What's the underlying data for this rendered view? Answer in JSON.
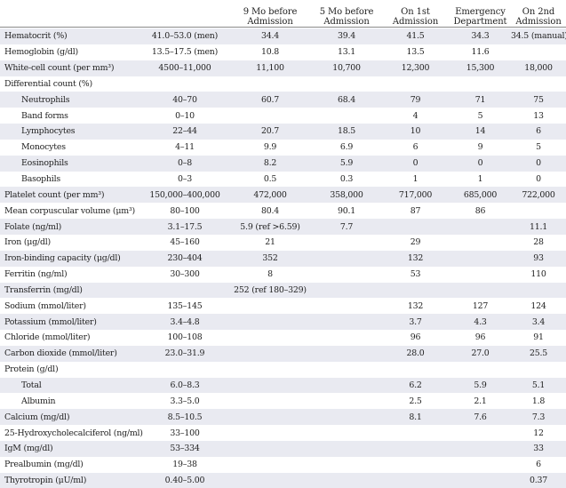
{
  "headers": [
    "",
    "",
    "9 Mo before\nAdmission",
    "5 Mo before\nAdmission",
    "On 1st\nAdmission",
    "Emergency\nDepartment",
    "On 2nd\nAdmission"
  ],
  "rows": [
    {
      "name": "Hematocrit (%)",
      "indent": false,
      "cells": [
        "41.0–53.0 (men)",
        "34.4",
        "39.4",
        "41.5",
        "34.3",
        "34.5 (manual)"
      ]
    },
    {
      "name": "Hemoglobin (g/dl)",
      "indent": false,
      "cells": [
        "13.5–17.5 (men)",
        "10.8",
        "13.1",
        "13.5",
        "11.6",
        ""
      ]
    },
    {
      "name": "White-cell count (per mm³)",
      "indent": false,
      "cells": [
        "4500–11,000",
        "11,100",
        "10,700",
        "12,300",
        "15,300",
        "18,000"
      ]
    },
    {
      "name": "Differential count (%)",
      "indent": false,
      "cells": [
        "",
        "",
        "",
        "",
        "",
        ""
      ]
    },
    {
      "name": "Neutrophils",
      "indent": true,
      "cells": [
        "40–70",
        "60.7",
        "68.4",
        "79",
        "71",
        "75"
      ]
    },
    {
      "name": "Band forms",
      "indent": true,
      "cells": [
        "0–10",
        "",
        "",
        "4",
        "5",
        "13"
      ]
    },
    {
      "name": "Lymphocytes",
      "indent": true,
      "cells": [
        "22–44",
        "20.7",
        "18.5",
        "10",
        "14",
        "6"
      ]
    },
    {
      "name": "Monocytes",
      "indent": true,
      "cells": [
        "4–11",
        "9.9",
        "6.9",
        "6",
        "9",
        "5"
      ]
    },
    {
      "name": "Eosinophils",
      "indent": true,
      "cells": [
        "0–8",
        "8.2",
        "5.9",
        "0",
        "0",
        "0"
      ]
    },
    {
      "name": "Basophils",
      "indent": true,
      "cells": [
        "0–3",
        "0.5",
        "0.3",
        "1",
        "1",
        "0"
      ]
    },
    {
      "name": "Platelet count (per mm³)",
      "indent": false,
      "cells": [
        "150,000–400,000",
        "472,000",
        "358,000",
        "717,000",
        "685,000",
        "722,000"
      ]
    },
    {
      "name": "Mean corpuscular volume (μm³)",
      "indent": false,
      "cells": [
        "80–100",
        "80.4",
        "90.1",
        "87",
        "86",
        ""
      ]
    },
    {
      "name": "Folate (ng/ml)",
      "indent": false,
      "cells": [
        "3.1–17.5",
        "5.9 (ref >6.59)",
        "7.7",
        "",
        "",
        "11.1"
      ]
    },
    {
      "name": "Iron (μg/dl)",
      "indent": false,
      "cells": [
        "45–160",
        "21",
        "",
        "29",
        "",
        "28"
      ]
    },
    {
      "name": "Iron-binding capacity (μg/dl)",
      "indent": false,
      "cells": [
        "230–404",
        "352",
        "",
        "132",
        "",
        "93"
      ]
    },
    {
      "name": "Ferritin (ng/ml)",
      "indent": false,
      "cells": [
        "30–300",
        "8",
        "",
        "53",
        "",
        "110"
      ]
    },
    {
      "name": "Transferrin (mg/dl)",
      "indent": false,
      "cells": [
        "",
        "252 (ref 180–329)",
        "",
        "",
        "",
        ""
      ]
    },
    {
      "name": "Sodium (mmol/liter)",
      "indent": false,
      "cells": [
        "135–145",
        "",
        "",
        "132",
        "127",
        "124"
      ]
    },
    {
      "name": "Potassium (mmol/liter)",
      "indent": false,
      "cells": [
        "3.4–4.8",
        "",
        "",
        "3.7",
        "4.3",
        "3.4"
      ]
    },
    {
      "name": "Chloride (mmol/liter)",
      "indent": false,
      "cells": [
        "100–108",
        "",
        "",
        "96",
        "96",
        "91"
      ]
    },
    {
      "name": "Carbon dioxide (mmol/liter)",
      "indent": false,
      "cells": [
        "23.0–31.9",
        "",
        "",
        "28.0",
        "27.0",
        "25.5"
      ]
    },
    {
      "name": "Protein (g/dl)",
      "indent": false,
      "cells": [
        "",
        "",
        "",
        "",
        "",
        ""
      ]
    },
    {
      "name": "Total",
      "indent": true,
      "cells": [
        "6.0–8.3",
        "",
        "",
        "6.2",
        "5.9",
        "5.1"
      ]
    },
    {
      "name": "Albumin",
      "indent": true,
      "cells": [
        "3.3–5.0",
        "",
        "",
        "2.5",
        "2.1",
        "1.8"
      ]
    },
    {
      "name": "Calcium (mg/dl)",
      "indent": false,
      "cells": [
        "8.5–10.5",
        "",
        "",
        "8.1",
        "7.6",
        "7.3"
      ]
    },
    {
      "name": "25-Hydroxycholecalciferol (ng/ml)",
      "indent": false,
      "cells": [
        "33–100",
        "",
        "",
        "",
        "",
        "12"
      ]
    },
    {
      "name": "IgM (mg/dl)",
      "indent": false,
      "cells": [
        "53–334",
        "",
        "",
        "",
        "",
        "33"
      ]
    },
    {
      "name": "Prealbumin (mg/dl)",
      "indent": false,
      "cells": [
        "19–38",
        "",
        "",
        "",
        "",
        "6"
      ]
    },
    {
      "name": "Thyrotropin (μU/ml)",
      "indent": false,
      "cells": [
        "0.40–5.00",
        "",
        "",
        "",
        "",
        "0.37"
      ]
    }
  ]
}
